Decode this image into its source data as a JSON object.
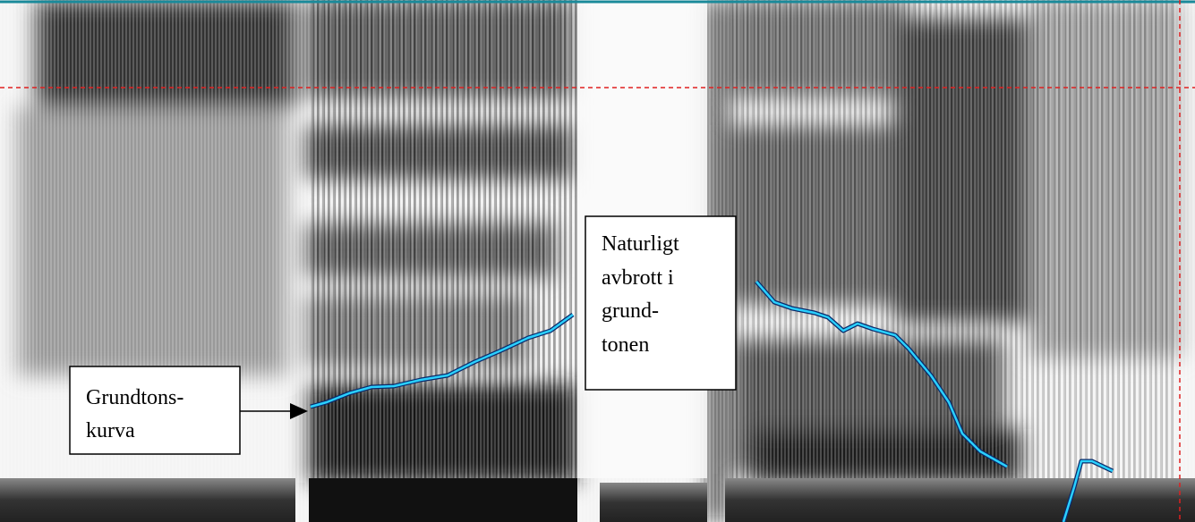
{
  "annotations": [
    {
      "lines": [
        "Grundtons-",
        "kurva"
      ]
    },
    {
      "lines": [
        "Naturligt",
        "avbrott i",
        "grund-",
        "tonen"
      ]
    }
  ]
}
